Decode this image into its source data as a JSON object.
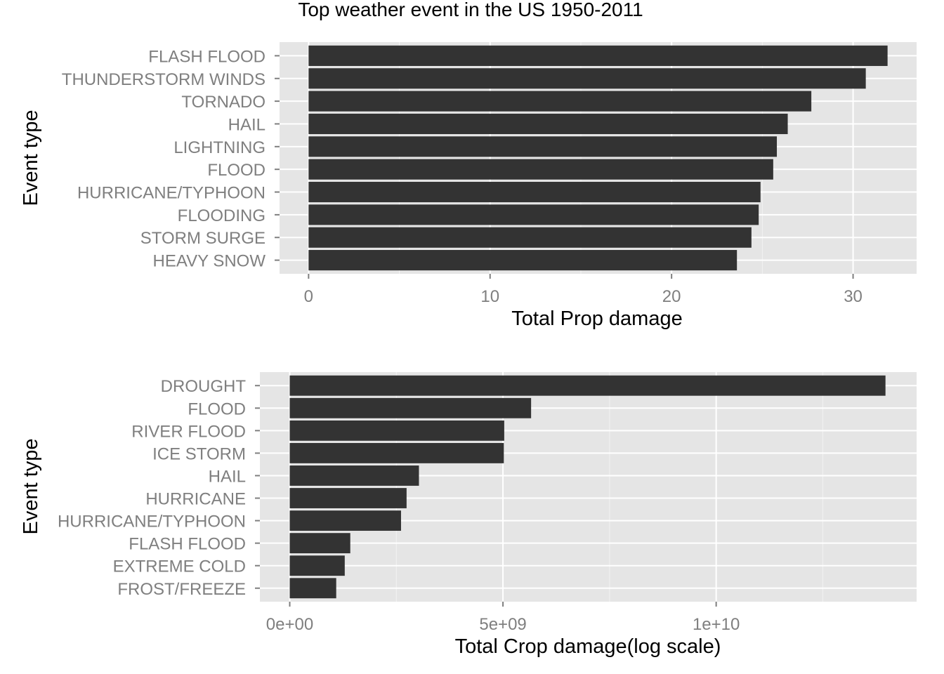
{
  "chart_data": [
    {
      "type": "bar",
      "orientation": "horizontal",
      "title": "Top weather event in the US 1950-2011",
      "xlabel": "Total Prop damage",
      "ylabel": "Event type",
      "categories": [
        "FLASH FLOOD",
        "THUNDERSTORM WINDS",
        "TORNADO",
        "HAIL",
        "LIGHTNING",
        "FLOOD",
        "HURRICANE/TYPHOON",
        "FLOODING",
        "STORM SURGE",
        "HEAVY SNOW"
      ],
      "values": [
        31.9,
        30.7,
        27.7,
        26.4,
        25.8,
        25.6,
        24.9,
        24.8,
        24.4,
        23.6
      ],
      "xlim": [
        -1.6,
        33.5
      ],
      "xticks": [
        0,
        10,
        20,
        30
      ],
      "xtick_labels": [
        "0",
        "10",
        "20",
        "30"
      ],
      "grid": true,
      "bar_color": "#333333",
      "panel_color": "#e5e5e5"
    },
    {
      "type": "bar",
      "orientation": "horizontal",
      "xlabel": "Total Crop damage(log scale)",
      "ylabel": "Event type",
      "categories": [
        "DROUGHT",
        "FLOOD",
        "RIVER FLOOD",
        "ICE STORM",
        "HAIL",
        "HURRICANE",
        "HURRICANE/TYPHOON",
        "FLASH FLOOD",
        "EXTREME COLD",
        "FROST/FREEZE"
      ],
      "values": [
        13970000000,
        5660000000,
        5030000000,
        5020000000,
        3030000000,
        2740000000,
        2610000000,
        1420000000,
        1290000000,
        1090000000
      ],
      "xlim": [
        -700000000,
        14700000000
      ],
      "xticks": [
        0,
        5000000000,
        10000000000
      ],
      "xtick_labels": [
        "0e+00",
        "5e+09",
        "1e+10"
      ],
      "grid": true,
      "bar_color": "#333333",
      "panel_color": "#e5e5e5"
    }
  ]
}
